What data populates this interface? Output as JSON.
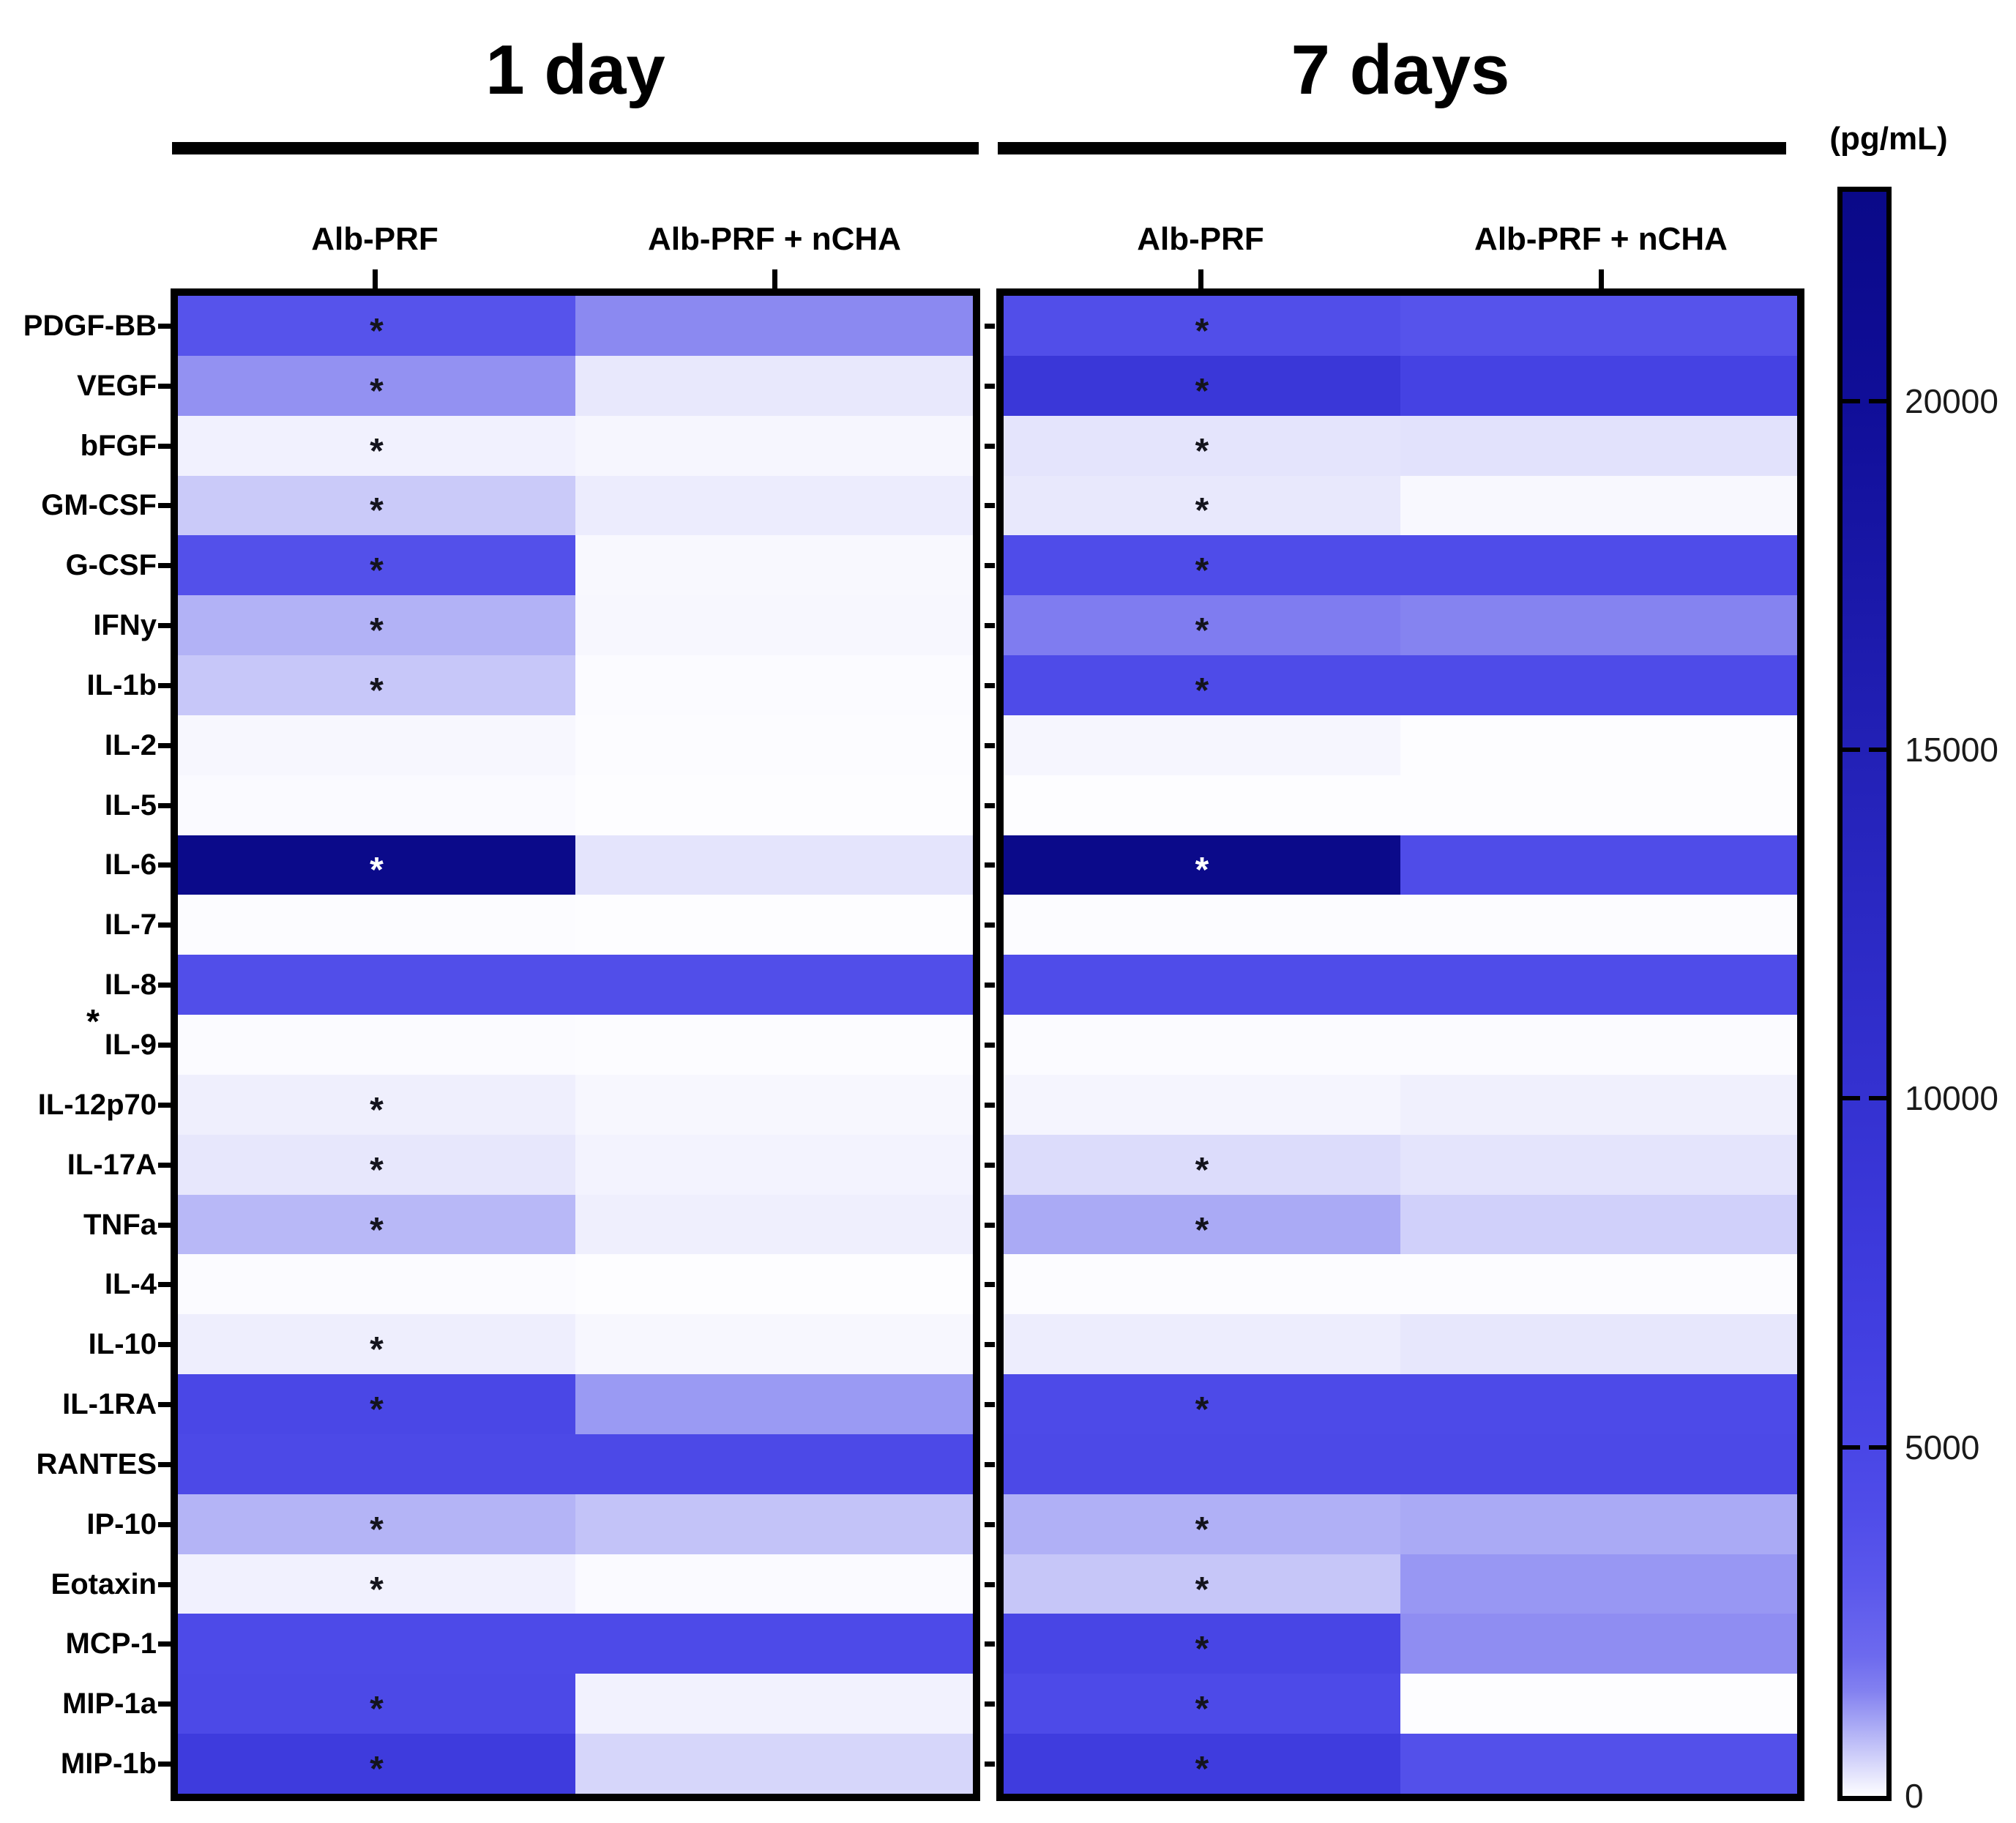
{
  "figure": {
    "kind": "cytokine-heatmap-figure"
  },
  "chart_data": {
    "type": "heatmap",
    "unit": "pg/mL",
    "rows": [
      "PDGF-BB",
      "VEGF",
      "bFGF",
      "GM-CSF",
      "G-CSF",
      "IFNy",
      "IL-1b",
      "IL-2",
      "IL-5",
      "IL-6",
      "IL-7",
      "IL-8",
      "IL-9",
      "IL-12p70",
      "IL-17A",
      "TNFa",
      "IL-4",
      "IL-10",
      "IL-1RA",
      "RANTES",
      "IP-10",
      "Eotaxin",
      "MCP-1",
      "MIP-1a",
      "MIP-1b"
    ],
    "significance_marker": "*",
    "row_axis_note": {
      "symbol": "*",
      "below_row": "IL-8"
    },
    "panels": [
      {
        "title": "1 day",
        "columns": [
          "Alb-PRF",
          "Alb-PRF + nCHA"
        ],
        "values": [
          [
            3500,
            1400
          ],
          [
            1300,
            260
          ],
          [
            150,
            90
          ],
          [
            620,
            210
          ],
          [
            3700,
            60
          ],
          [
            900,
            70
          ],
          [
            650,
            20
          ],
          [
            70,
            10
          ],
          [
            40,
            5
          ],
          [
            22700,
            300
          ],
          [
            10,
            0
          ],
          [
            3900,
            3900
          ],
          [
            30,
            15
          ],
          [
            170,
            75
          ],
          [
            270,
            120
          ],
          [
            830,
            170
          ],
          [
            20,
            5
          ],
          [
            180,
            70
          ],
          [
            4900,
            1200
          ],
          [
            4600,
            4600
          ],
          [
            880,
            700
          ],
          [
            150,
            40
          ],
          [
            4500,
            4500
          ],
          [
            4600,
            140
          ],
          [
            7500,
            480
          ]
        ],
        "significant_alb_prf": [
          1,
          1,
          1,
          1,
          1,
          1,
          1,
          0,
          0,
          1,
          0,
          0,
          0,
          1,
          1,
          1,
          0,
          1,
          1,
          0,
          1,
          1,
          0,
          1,
          1
        ]
      },
      {
        "title": "7 days",
        "columns": [
          "Alb-PRF",
          "Alb-PRF + nCHA"
        ],
        "values": [
          [
            3900,
            3500
          ],
          [
            8600,
            5800
          ],
          [
            300,
            330
          ],
          [
            260,
            60
          ],
          [
            4100,
            4100
          ],
          [
            1600,
            1480
          ],
          [
            4300,
            4300
          ],
          [
            80,
            5
          ],
          [
            5,
            5
          ],
          [
            22700,
            4200
          ],
          [
            10,
            10
          ],
          [
            4100,
            4100
          ],
          [
            20,
            20
          ],
          [
            100,
            160
          ],
          [
            400,
            310
          ],
          [
            1000,
            550
          ],
          [
            10,
            10
          ],
          [
            200,
            270
          ],
          [
            4500,
            4500
          ],
          [
            4600,
            4600
          ],
          [
            930,
            1000
          ],
          [
            670,
            1230
          ],
          [
            5200,
            1350
          ],
          [
            4400,
            0
          ],
          [
            7200,
            3700
          ]
        ],
        "significant_alb_prf": [
          1,
          1,
          1,
          1,
          1,
          1,
          1,
          0,
          0,
          1,
          0,
          0,
          0,
          0,
          1,
          1,
          0,
          0,
          1,
          0,
          1,
          1,
          1,
          1,
          1
        ]
      }
    ],
    "colorscale": {
      "label": "(pg/mL)",
      "vmin": 0,
      "vmax": 23000,
      "tick_values": [
        20000,
        15000,
        10000,
        5000,
        0
      ],
      "stops": [
        [
          0,
          [
            253,
            253,
            255
          ]
        ],
        [
          500,
          [
            212,
            212,
            250
          ]
        ],
        [
          1000,
          [
            170,
            170,
            245
          ]
        ],
        [
          1500,
          [
            131,
            129,
            240
          ]
        ],
        [
          2000,
          [
            109,
            106,
            238
          ]
        ],
        [
          3000,
          [
            91,
            88,
            236
          ]
        ],
        [
          4000,
          [
            80,
            77,
            233
          ]
        ],
        [
          5000,
          [
            73,
            70,
            230
          ]
        ],
        [
          6500,
          [
            66,
            63,
            225
          ]
        ],
        [
          8000,
          [
            60,
            57,
            219
          ]
        ],
        [
          9500,
          [
            54,
            51,
            211
          ]
        ],
        [
          12500,
          [
            43,
            41,
            196
          ]
        ],
        [
          15700,
          [
            32,
            30,
            178
          ]
        ],
        [
          20000,
          [
            16,
            14,
            152
          ]
        ],
        [
          23000,
          [
            10,
            9,
            136
          ]
        ]
      ],
      "star_white_threshold": 15000,
      "accent_dark": "#0a0988",
      "accent_mid": "#4f4ee9",
      "background": "#ffffff"
    }
  }
}
